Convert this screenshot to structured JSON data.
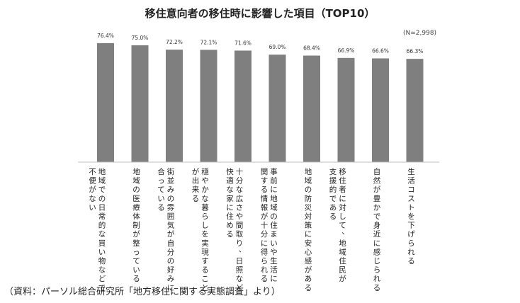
{
  "chart_data": {
    "type": "bar",
    "title": "移住意向者の移住時に影響した項目（TOP10）",
    "sample_note": "(N=2,998)",
    "value_labels": [
      "76.4%",
      "75.0%",
      "72.2%",
      "72.1%",
      "71.6%",
      "69.0%",
      "68.4%",
      "66.9%",
      "66.6%",
      "66.3%"
    ],
    "values": [
      76.4,
      75.0,
      72.2,
      72.1,
      71.6,
      69.0,
      68.4,
      66.9,
      66.6,
      66.3
    ],
    "categories": [
      [
        "地域での日常的な買い物などで",
        "不便がない"
      ],
      [
        "地域の医療体制が整っている"
      ],
      [
        "街並みの雰囲気が自分の好みに",
        "合っている"
      ],
      [
        "穏やかな暮らしを実現すること",
        "が出来る"
      ],
      [
        "十分な広さや間取り、日照など",
        "快適な家に住める"
      ],
      [
        "事前に地域の住まいや生活に",
        "関する情報が十分に得られる"
      ],
      [
        "地域の防災対策に安心感がある"
      ],
      [
        "移住者に対して、地域住民が",
        "支援的である"
      ],
      [
        "自然が豊かで身近に感じられる"
      ],
      [
        "生活コストを下げられる"
      ]
    ],
    "ylim": [
      0,
      80
    ],
    "source": "（資料：パーソル総合研究所「地方移住に関する実態調査」より）"
  }
}
